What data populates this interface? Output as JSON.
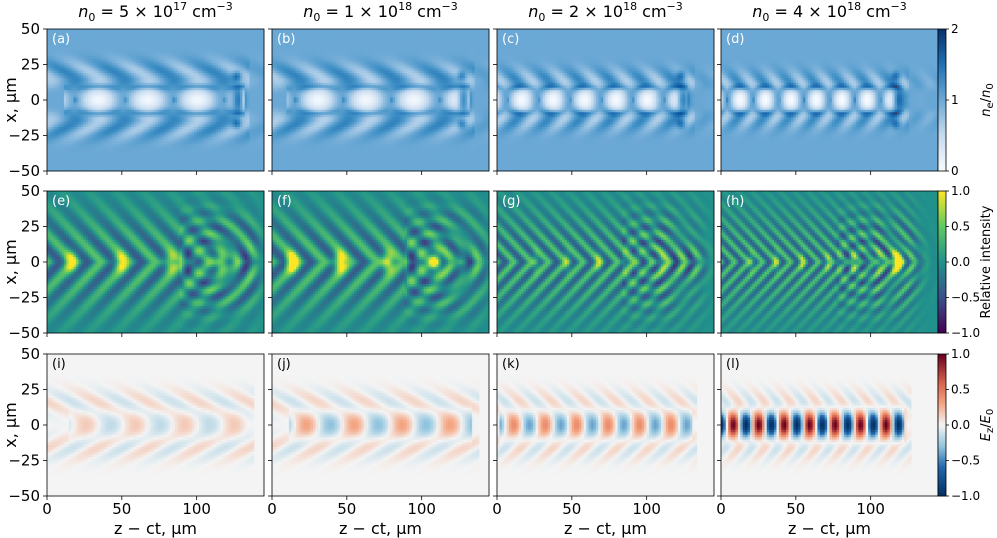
{
  "chart_data": {
    "type": "heatmap",
    "column_titles": [
      {
        "base": "n",
        "sub": "0",
        "mid": " = 5 × 10",
        "sup": "17",
        "unit": " cm",
        "unit_sup": "−3"
      },
      {
        "base": "n",
        "sub": "0",
        "mid": " = 1 × 10",
        "sup": "18",
        "unit": " cm",
        "unit_sup": "−3"
      },
      {
        "base": "n",
        "sub": "0",
        "mid": " = 2 × 10",
        "sup": "18",
        "unit": " cm",
        "unit_sup": "−3"
      },
      {
        "base": "n",
        "sub": "0",
        "mid": " = 4 × 10",
        "sup": "18",
        "unit": " cm",
        "unit_sup": "−3"
      }
    ],
    "densities_cm3": [
      5e+17,
      1e+18,
      2e+18,
      4e+18
    ],
    "panel_labels": [
      [
        "(a)",
        "(b)",
        "(c)",
        "(d)"
      ],
      [
        "(e)",
        "(f)",
        "(g)",
        "(h)"
      ],
      [
        "(i)",
        "(j)",
        "(k)",
        "(l)"
      ]
    ],
    "xlabel": "z − ct, μm",
    "ylabel": "x, μm",
    "xlim": [
      0,
      145
    ],
    "ylim": [
      -50,
      50
    ],
    "xticks": [
      "0",
      "50",
      "100"
    ],
    "xtick_values": [
      0,
      50,
      100
    ],
    "yticks": [
      "50",
      "25",
      "0",
      "−25",
      "−50"
    ],
    "ytick_values": [
      50,
      25,
      0,
      -25,
      -50
    ],
    "rows": [
      {
        "quantity": "electron density",
        "colorbar_label": "ne/n0",
        "colorbar_label_parts": {
          "b1": "n",
          "s1": "e",
          "slash": "/",
          "b2": "n",
          "s2": "0"
        },
        "colormap": "Blues",
        "clim": [
          0,
          2
        ],
        "cbticks": [
          "2",
          "1",
          "0"
        ],
        "cbtick_values": [
          2,
          1,
          0
        ]
      },
      {
        "quantity": "relative intensity",
        "colorbar_label": "Relative intensity",
        "colormap": "viridis",
        "clim": [
          -1,
          1
        ],
        "cbticks": [
          "1.0",
          "0.5",
          "0.0",
          "−0.5",
          "−1.0"
        ],
        "cbtick_values": [
          1,
          0.5,
          0,
          -0.5,
          -1
        ]
      },
      {
        "quantity": "longitudinal field",
        "colorbar_label": "Ez/E0",
        "colorbar_label_parts": {
          "b1": "E",
          "s1": "z",
          "slash": "/",
          "b2": "E",
          "s2": "0"
        },
        "colormap": "RdBu_r",
        "clim": [
          -1,
          1
        ],
        "cbticks": [
          "1.0",
          "0.5",
          "0.0",
          "−0.5",
          "−1.0"
        ],
        "cbtick_values": [
          1,
          0.5,
          0,
          -0.5,
          -1
        ]
      }
    ],
    "features": [
      {
        "bubble_period_um": 33,
        "bubble_start_um": 18,
        "driver_um": 128,
        "channel_halfwidth_um": 20,
        "field_peak": 0.15
      },
      {
        "bubble_period_um": 32,
        "bubble_start_um": 15,
        "driver_um": 128,
        "channel_halfwidth_um": 18,
        "field_peak": 0.3
      },
      {
        "bubble_period_um": 21,
        "bubble_start_um": 6,
        "driver_um": 124,
        "channel_halfwidth_um": 14,
        "field_peak": 0.4
      },
      {
        "bubble_period_um": 17,
        "bubble_start_um": 4,
        "driver_um": 118,
        "channel_halfwidth_um": 12,
        "field_peak": 1.0
      }
    ],
    "colors": {
      "background_density": "#6fa8d6",
      "background_intensity": "#21918c",
      "background_field": "#f4f4f4"
    }
  }
}
